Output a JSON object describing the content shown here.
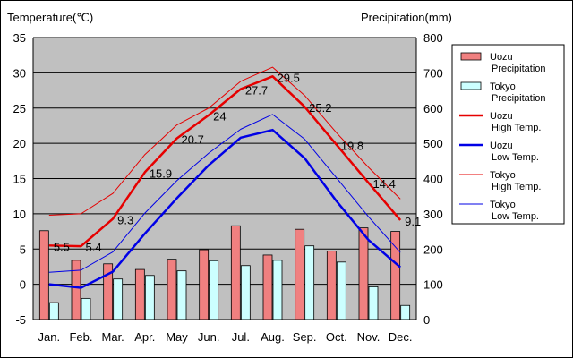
{
  "chart_data": {
    "type": "bar+line",
    "title": "",
    "categories": [
      "Jan.",
      "Feb.",
      "Mar.",
      "Apr.",
      "May",
      "Jun.",
      "Jul.",
      "Aug.",
      "Sep.",
      "Oct.",
      "Nov.",
      "Dec."
    ],
    "left_axis": {
      "label": "Temperature(℃)",
      "range": [
        -5,
        35
      ],
      "ticks": [
        -5,
        0,
        5,
        10,
        15,
        20,
        25,
        30,
        35
      ]
    },
    "right_axis": {
      "label": "Precipitation(mm)",
      "range": [
        0,
        800
      ],
      "ticks": [
        0,
        100,
        200,
        300,
        400,
        500,
        600,
        700,
        800
      ]
    },
    "grid": true,
    "legend_position": "right",
    "series": [
      {
        "name": "Uozu Precipitation",
        "legend": [
          "Uozu",
          "Precipitation"
        ],
        "kind": "bar",
        "axis": "right",
        "color": "#f08080",
        "values": [
          252,
          168,
          158,
          142,
          171,
          198,
          266,
          183,
          256,
          194,
          260,
          250
        ]
      },
      {
        "name": "Tokyo Precipitation",
        "legend": [
          "Tokyo",
          "Precipitation"
        ],
        "kind": "bar",
        "axis": "right",
        "color": "#ccffff",
        "values": [
          48,
          60,
          115,
          125,
          138,
          167,
          153,
          168,
          209,
          163,
          93,
          40
        ]
      },
      {
        "name": "Uozu High Temp.",
        "legend": [
          "Uozu",
          "High Temp."
        ],
        "kind": "line",
        "axis": "left",
        "color": "#e60000",
        "width": 2.5,
        "values": [
          5.5,
          5.4,
          9.3,
          15.9,
          20.7,
          24.0,
          27.7,
          29.5,
          25.2,
          19.8,
          14.4,
          9.1
        ],
        "labels": [
          "5.5",
          "5.4",
          "9.3",
          "15.9",
          "20.7",
          "24",
          "27.7",
          "29.5",
          "25.2",
          "19.8",
          "14.4",
          "9.1"
        ]
      },
      {
        "name": "Uozu Low Temp.",
        "legend": [
          "Uozu",
          "Low Temp."
        ],
        "kind": "line",
        "axis": "left",
        "color": "#0000e6",
        "width": 2.5,
        "values": [
          0.0,
          -0.5,
          1.8,
          7.2,
          12.2,
          16.9,
          20.8,
          21.9,
          17.9,
          11.8,
          6.3,
          2.4
        ]
      },
      {
        "name": "Tokyo High Temp.",
        "legend": [
          "Tokyo",
          "High Temp."
        ],
        "kind": "line",
        "axis": "left",
        "color": "#e60000",
        "width": 1,
        "values": [
          9.8,
          10.0,
          12.9,
          18.4,
          22.6,
          25.0,
          28.8,
          30.8,
          26.8,
          21.5,
          16.6,
          12.1
        ]
      },
      {
        "name": "Tokyo Low Temp.",
        "legend": [
          "Tokyo",
          "Low Temp."
        ],
        "kind": "line",
        "axis": "left",
        "color": "#0000e6",
        "width": 1,
        "values": [
          1.7,
          2.0,
          4.6,
          10.1,
          14.7,
          18.6,
          22.0,
          24.1,
          20.6,
          15.1,
          9.6,
          4.5
        ]
      }
    ]
  }
}
